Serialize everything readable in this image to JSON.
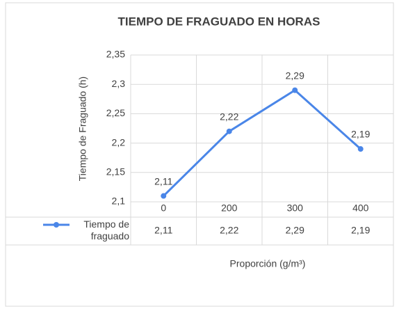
{
  "chart_data": {
    "type": "line",
    "title": "TIEMPO DE FRAGUADO  EN HORAS",
    "x_label": "Proporción (g/m³)",
    "y_label": "Tiempo de Fraguado (h)",
    "categories": [
      "0",
      "200",
      "300",
      "400"
    ],
    "series": [
      {
        "name": "Tiempo de fraguado",
        "color": "#4a86e8",
        "values": [
          2.11,
          2.22,
          2.29,
          2.19
        ],
        "value_labels": [
          "2,11",
          "2,22",
          "2,29",
          "2,19"
        ]
      }
    ],
    "ylim": [
      2.1,
      2.35
    ],
    "yticks": [
      {
        "value": 2.1,
        "label": "2,1"
      },
      {
        "value": 2.15,
        "label": "2,15"
      },
      {
        "value": 2.2,
        "label": "2,2"
      },
      {
        "value": 2.25,
        "label": "2,25"
      },
      {
        "value": 2.3,
        "label": "2,3"
      },
      {
        "value": 2.35,
        "label": "2,35"
      }
    ],
    "grid": true
  }
}
